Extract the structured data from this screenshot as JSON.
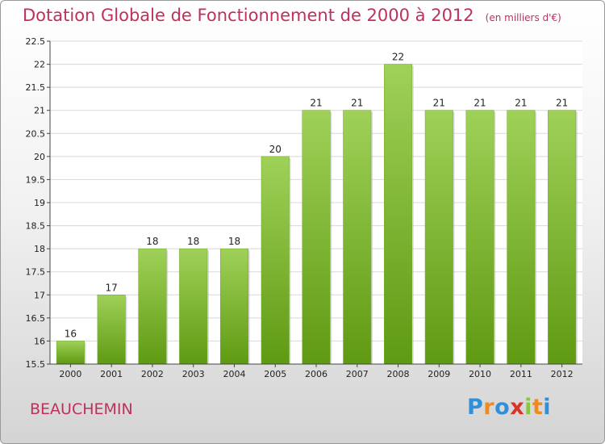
{
  "chart_data": {
    "type": "bar",
    "title": "Dotation Globale de Fonctionnement de 2000 à 2012",
    "subtitle": "(en milliers d'€)",
    "categories": [
      "2000",
      "2001",
      "2002",
      "2003",
      "2004",
      "2005",
      "2006",
      "2007",
      "2008",
      "2009",
      "2010",
      "2011",
      "2012"
    ],
    "values": [
      16,
      17,
      18,
      18,
      18,
      20,
      21,
      21,
      22,
      21,
      21,
      21,
      21
    ],
    "data_labels": [
      "16",
      "17",
      "18",
      "18",
      "18",
      "20",
      "21",
      "21",
      "22",
      "21",
      "21",
      "21",
      "21"
    ],
    "xlabel": "",
    "ylabel": "",
    "ylim": [
      15.5,
      22.5
    ],
    "yticks": [
      "15.5",
      "16",
      "16.5",
      "17",
      "17.5",
      "18",
      "18.5",
      "19",
      "19.5",
      "20",
      "20.5",
      "21",
      "21.5",
      "22",
      "22.5"
    ],
    "grid": true,
    "legend": "none",
    "colors": {
      "bar_light": "#9fd158",
      "bar_dark": "#5f9a12",
      "title": "#c0305a"
    }
  },
  "commune": "BEAUCHEMIN",
  "logo": {
    "letters": [
      "P",
      "r",
      "o",
      "x",
      "i",
      "t",
      "i"
    ],
    "colors": [
      "#2f8fd8",
      "#f08a1c",
      "#2f8fd8",
      "#d8342a",
      "#8cc63f",
      "#f08a1c",
      "#2f8fd8"
    ]
  }
}
